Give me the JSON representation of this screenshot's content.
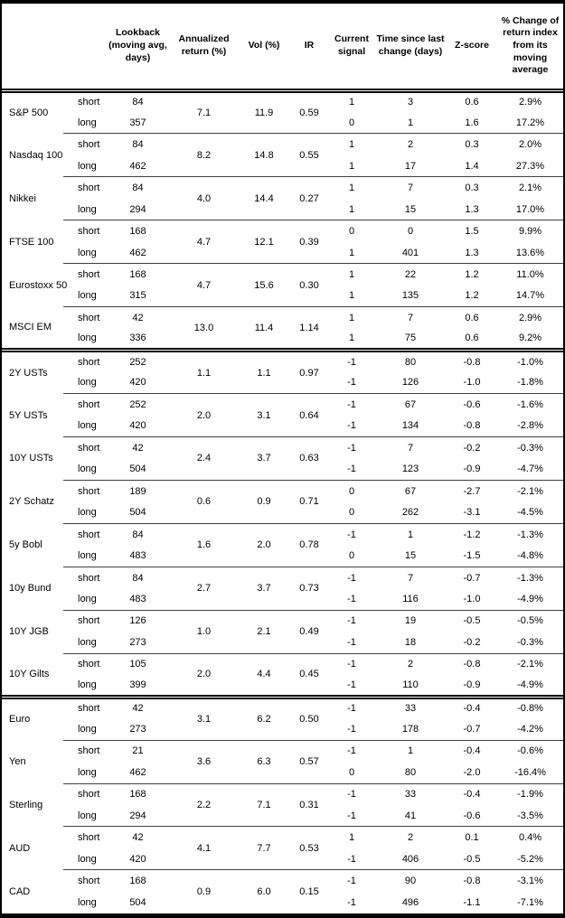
{
  "table": {
    "headers": {
      "instrument": "",
      "leg": "",
      "lookback": "Lookback (moving avg, days)",
      "annualized_return": "Annualized return (%)",
      "vol": "Vol (%)",
      "ir": "IR",
      "current_signal": "Current signal",
      "time_since_last_change": "Time since last change (days)",
      "zscore": "Z-score",
      "pct_change": "% Change of return index from its moving average"
    },
    "sections": [
      {
        "groups": [
          {
            "instrument": "S&P 500",
            "annualized_return": "7.1",
            "vol": "11.9",
            "ir": "0.59",
            "legs": [
              {
                "leg": "short",
                "lookback": "84",
                "current_signal": "1",
                "time_since_last_change": "3",
                "zscore": "0.6",
                "pct_change": "2.9%"
              },
              {
                "leg": "long",
                "lookback": "357",
                "current_signal": "0",
                "time_since_last_change": "1",
                "zscore": "1.6",
                "pct_change": "17.2%"
              }
            ]
          },
          {
            "instrument": "Nasdaq 100",
            "annualized_return": "8.2",
            "vol": "14.8",
            "ir": "0.55",
            "legs": [
              {
                "leg": "short",
                "lookback": "84",
                "current_signal": "1",
                "time_since_last_change": "2",
                "zscore": "0.3",
                "pct_change": "2.0%"
              },
              {
                "leg": "long",
                "lookback": "462",
                "current_signal": "1",
                "time_since_last_change": "17",
                "zscore": "1.4",
                "pct_change": "27.3%"
              }
            ]
          },
          {
            "instrument": "Nikkei",
            "annualized_return": "4.0",
            "vol": "14.4",
            "ir": "0.27",
            "legs": [
              {
                "leg": "short",
                "lookback": "84",
                "current_signal": "1",
                "time_since_last_change": "7",
                "zscore": "0.3",
                "pct_change": "2.1%"
              },
              {
                "leg": "long",
                "lookback": "294",
                "current_signal": "1",
                "time_since_last_change": "15",
                "zscore": "1.3",
                "pct_change": "17.0%"
              }
            ]
          },
          {
            "instrument": "FTSE 100",
            "annualized_return": "4.7",
            "vol": "12.1",
            "ir": "0.39",
            "legs": [
              {
                "leg": "short",
                "lookback": "168",
                "current_signal": "0",
                "time_since_last_change": "0",
                "zscore": "1.5",
                "pct_change": "9.9%"
              },
              {
                "leg": "long",
                "lookback": "462",
                "current_signal": "1",
                "time_since_last_change": "401",
                "zscore": "1.3",
                "pct_change": "13.6%"
              }
            ]
          },
          {
            "instrument": "Eurostoxx 50",
            "annualized_return": "4.7",
            "vol": "15.6",
            "ir": "0.30",
            "legs": [
              {
                "leg": "short",
                "lookback": "168",
                "current_signal": "1",
                "time_since_last_change": "22",
                "zscore": "1.2",
                "pct_change": "11.0%"
              },
              {
                "leg": "long",
                "lookback": "315",
                "current_signal": "1",
                "time_since_last_change": "135",
                "zscore": "1.2",
                "pct_change": "14.7%"
              }
            ]
          },
          {
            "instrument": "MSCI EM",
            "annualized_return": "13.0",
            "vol": "11.4",
            "ir": "1.14",
            "legs": [
              {
                "leg": "short",
                "lookback": "42",
                "current_signal": "1",
                "time_since_last_change": "7",
                "zscore": "0.6",
                "pct_change": "2.9%"
              },
              {
                "leg": "long",
                "lookback": "336",
                "current_signal": "1",
                "time_since_last_change": "75",
                "zscore": "0.6",
                "pct_change": "9.2%"
              }
            ]
          }
        ]
      },
      {
        "groups": [
          {
            "instrument": "2Y USTs",
            "annualized_return": "1.1",
            "vol": "1.1",
            "ir": "0.97",
            "legs": [
              {
                "leg": "short",
                "lookback": "252",
                "current_signal": "-1",
                "time_since_last_change": "80",
                "zscore": "-0.8",
                "pct_change": "-1.0%"
              },
              {
                "leg": "long",
                "lookback": "420",
                "current_signal": "-1",
                "time_since_last_change": "126",
                "zscore": "-1.0",
                "pct_change": "-1.8%"
              }
            ]
          },
          {
            "instrument": "5Y USTs",
            "annualized_return": "2.0",
            "vol": "3.1",
            "ir": "0.64",
            "legs": [
              {
                "leg": "short",
                "lookback": "252",
                "current_signal": "-1",
                "time_since_last_change": "67",
                "zscore": "-0.6",
                "pct_change": "-1.6%"
              },
              {
                "leg": "long",
                "lookback": "420",
                "current_signal": "-1",
                "time_since_last_change": "134",
                "zscore": "-0.8",
                "pct_change": "-2.8%"
              }
            ]
          },
          {
            "instrument": "10Y USTs",
            "annualized_return": "2.4",
            "vol": "3.7",
            "ir": "0.63",
            "legs": [
              {
                "leg": "short",
                "lookback": "42",
                "current_signal": "-1",
                "time_since_last_change": "7",
                "zscore": "-0.2",
                "pct_change": "-0.3%"
              },
              {
                "leg": "long",
                "lookback": "504",
                "current_signal": "-1",
                "time_since_last_change": "123",
                "zscore": "-0.9",
                "pct_change": "-4.7%"
              }
            ]
          },
          {
            "instrument": "2Y Schatz",
            "annualized_return": "0.6",
            "vol": "0.9",
            "ir": "0.71",
            "legs": [
              {
                "leg": "short",
                "lookback": "189",
                "current_signal": "0",
                "time_since_last_change": "67",
                "zscore": "-2.7",
                "pct_change": "-2.1%"
              },
              {
                "leg": "long",
                "lookback": "504",
                "current_signal": "0",
                "time_since_last_change": "262",
                "zscore": "-3.1",
                "pct_change": "-4.5%"
              }
            ]
          },
          {
            "instrument": "5y Bobl",
            "annualized_return": "1.6",
            "vol": "2.0",
            "ir": "0.78",
            "legs": [
              {
                "leg": "short",
                "lookback": "84",
                "current_signal": "-1",
                "time_since_last_change": "1",
                "zscore": "-1.2",
                "pct_change": "-1.3%"
              },
              {
                "leg": "long",
                "lookback": "483",
                "current_signal": "0",
                "time_since_last_change": "15",
                "zscore": "-1.5",
                "pct_change": "-4.8%"
              }
            ]
          },
          {
            "instrument": "10y Bund",
            "annualized_return": "2.7",
            "vol": "3.7",
            "ir": "0.73",
            "legs": [
              {
                "leg": "short",
                "lookback": "84",
                "current_signal": "-1",
                "time_since_last_change": "7",
                "zscore": "-0.7",
                "pct_change": "-1.3%"
              },
              {
                "leg": "long",
                "lookback": "483",
                "current_signal": "-1",
                "time_since_last_change": "116",
                "zscore": "-1.0",
                "pct_change": "-4.9%"
              }
            ]
          },
          {
            "instrument": "10Y JGB",
            "annualized_return": "1.0",
            "vol": "2.1",
            "ir": "0.49",
            "legs": [
              {
                "leg": "short",
                "lookback": "126",
                "current_signal": "-1",
                "time_since_last_change": "19",
                "zscore": "-0.5",
                "pct_change": "-0.5%"
              },
              {
                "leg": "long",
                "lookback": "273",
                "current_signal": "-1",
                "time_since_last_change": "18",
                "zscore": "-0.2",
                "pct_change": "-0.3%"
              }
            ]
          },
          {
            "instrument": "10Y Gilts",
            "annualized_return": "2.0",
            "vol": "4.4",
            "ir": "0.45",
            "legs": [
              {
                "leg": "short",
                "lookback": "105",
                "current_signal": "-1",
                "time_since_last_change": "2",
                "zscore": "-0.8",
                "pct_change": "-2.1%"
              },
              {
                "leg": "long",
                "lookback": "399",
                "current_signal": "-1",
                "time_since_last_change": "110",
                "zscore": "-0.9",
                "pct_change": "-4.9%"
              }
            ]
          }
        ]
      },
      {
        "groups": [
          {
            "instrument": "Euro",
            "annualized_return": "3.1",
            "vol": "6.2",
            "ir": "0.50",
            "legs": [
              {
                "leg": "short",
                "lookback": "42",
                "current_signal": "-1",
                "time_since_last_change": "33",
                "zscore": "-0.4",
                "pct_change": "-0.8%"
              },
              {
                "leg": "long",
                "lookback": "273",
                "current_signal": "-1",
                "time_since_last_change": "178",
                "zscore": "-0.7",
                "pct_change": "-4.2%"
              }
            ]
          },
          {
            "instrument": "Yen",
            "annualized_return": "3.6",
            "vol": "6.3",
            "ir": "0.57",
            "legs": [
              {
                "leg": "short",
                "lookback": "21",
                "current_signal": "-1",
                "time_since_last_change": "1",
                "zscore": "-0.4",
                "pct_change": "-0.6%"
              },
              {
                "leg": "long",
                "lookback": "462",
                "current_signal": "0",
                "time_since_last_change": "80",
                "zscore": "-2.0",
                "pct_change": "-16.4%"
              }
            ]
          },
          {
            "instrument": "Sterling",
            "annualized_return": "2.2",
            "vol": "7.1",
            "ir": "0.31",
            "legs": [
              {
                "leg": "short",
                "lookback": "168",
                "current_signal": "-1",
                "time_since_last_change": "33",
                "zscore": "-0.4",
                "pct_change": "-1.9%"
              },
              {
                "leg": "long",
                "lookback": "294",
                "current_signal": "-1",
                "time_since_last_change": "41",
                "zscore": "-0.6",
                "pct_change": "-3.5%"
              }
            ]
          },
          {
            "instrument": "AUD",
            "annualized_return": "4.1",
            "vol": "7.7",
            "ir": "0.53",
            "legs": [
              {
                "leg": "short",
                "lookback": "42",
                "current_signal": "1",
                "time_since_last_change": "2",
                "zscore": "0.1",
                "pct_change": "0.4%"
              },
              {
                "leg": "long",
                "lookback": "420",
                "current_signal": "-1",
                "time_since_last_change": "406",
                "zscore": "-0.5",
                "pct_change": "-5.2%"
              }
            ]
          },
          {
            "instrument": "CAD",
            "annualized_return": "0.9",
            "vol": "6.0",
            "ir": "0.15",
            "legs": [
              {
                "leg": "short",
                "lookback": "168",
                "current_signal": "-1",
                "time_since_last_change": "90",
                "zscore": "-0.8",
                "pct_change": "-3.1%"
              },
              {
                "leg": "long",
                "lookback": "504",
                "current_signal": "-1",
                "time_since_last_change": "496",
                "zscore": "-1.1",
                "pct_change": "-7.1%"
              }
            ]
          }
        ]
      }
    ]
  },
  "colors": {
    "background": "#ffffff",
    "text": "#000000",
    "frame_border": "#000000",
    "group_separator": "#404040"
  }
}
